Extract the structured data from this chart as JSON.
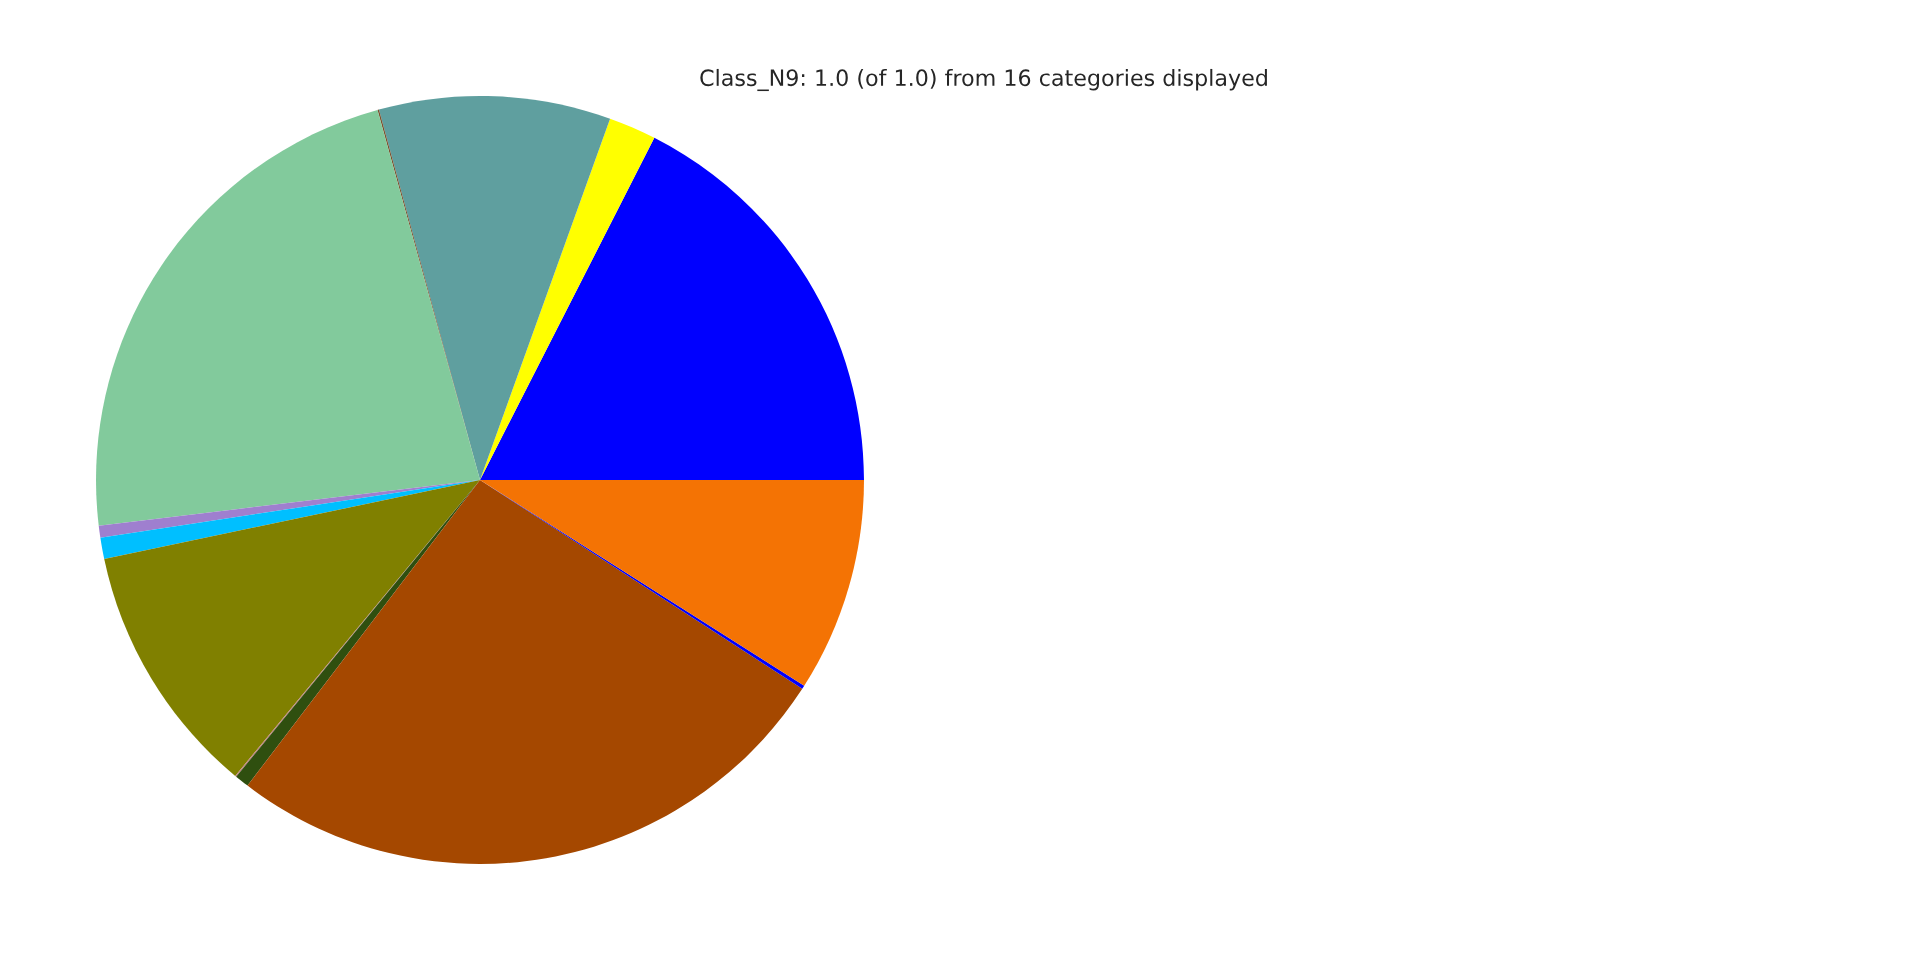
{
  "chart_data": {
    "type": "pie",
    "title": "Class_N9: 1.0 (of 1.0) from 16 categories displayed",
    "categories": [
      null,
      null,
      null,
      null,
      null,
      null,
      null,
      null,
      null,
      null,
      null,
      null,
      null
    ],
    "values": [
      17.5,
      2.0,
      9.74,
      0.06,
      22.6,
      0.5,
      0.9,
      10.7,
      0.05,
      0.6,
      26.2,
      0.15,
      9.0
    ],
    "colors": [
      "#0000ff",
      "#ffff00",
      "#5f9f9f",
      "#7a5230",
      "#82ca9c",
      "#9f7fcf",
      "#00bfff",
      "#808000",
      "#c08080",
      "#2f4f0f",
      "#a54800",
      "#0000ff",
      "#f47304"
    ]
  }
}
